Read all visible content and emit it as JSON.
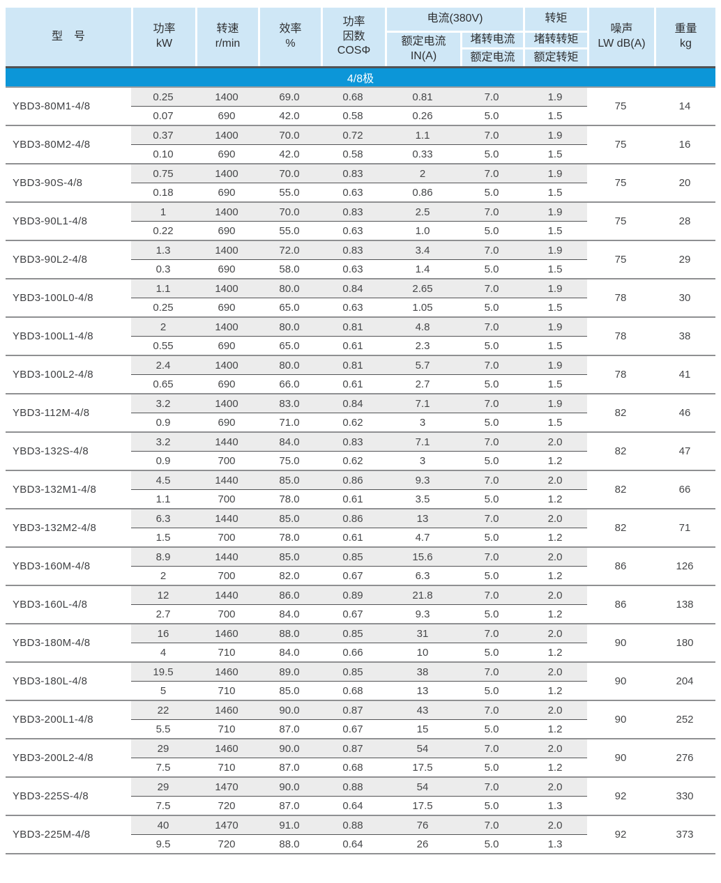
{
  "table": {
    "headers": {
      "model": "型　号",
      "power": "功率\nkW",
      "speed": "转速\nr/min",
      "efficiency": "效率\n%",
      "power_factor": "功率\n因数\nCOSΦ",
      "current_group": "电流(380V)",
      "rated_current": "额定电流\nIN(A)",
      "locked_current_num": "堵转电流",
      "locked_current_den": "额定电流",
      "torque_group": "转矩",
      "locked_torque_num": "堵转转矩",
      "locked_torque_den": "额定转矩",
      "noise": "噪声\nLW dB(A)",
      "weight": "重量\nkg"
    },
    "section_banner": "4/8极",
    "rows": [
      {
        "model": "YBD3-80M1-4/8",
        "high": [
          "0.25",
          "1400",
          "69.0",
          "0.68",
          "0.81",
          "7.0",
          "1.9"
        ],
        "low": [
          "0.07",
          "690",
          "42.0",
          "0.58",
          "0.26",
          "5.0",
          "1.5"
        ],
        "noise": "75",
        "weight": "14"
      },
      {
        "model": "YBD3-80M2-4/8",
        "high": [
          "0.37",
          "1400",
          "70.0",
          "0.72",
          "1.1",
          "7.0",
          "1.9"
        ],
        "low": [
          "0.10",
          "690",
          "42.0",
          "0.58",
          "0.33",
          "5.0",
          "1.5"
        ],
        "noise": "75",
        "weight": "16"
      },
      {
        "model": "YBD3-90S-4/8",
        "high": [
          "0.75",
          "1400",
          "70.0",
          "0.83",
          "2",
          "7.0",
          "1.9"
        ],
        "low": [
          "0.18",
          "690",
          "55.0",
          "0.63",
          "0.86",
          "5.0",
          "1.5"
        ],
        "noise": "75",
        "weight": "20"
      },
      {
        "model": "YBD3-90L1-4/8",
        "high": [
          "1",
          "1400",
          "70.0",
          "0.83",
          "2.5",
          "7.0",
          "1.9"
        ],
        "low": [
          "0.22",
          "690",
          "55.0",
          "0.63",
          "1.0",
          "5.0",
          "1.5"
        ],
        "noise": "75",
        "weight": "28"
      },
      {
        "model": "YBD3-90L2-4/8",
        "high": [
          "1.3",
          "1400",
          "72.0",
          "0.83",
          "3.4",
          "7.0",
          "1.9"
        ],
        "low": [
          "0.3",
          "690",
          "58.0",
          "0.63",
          "1.4",
          "5.0",
          "1.5"
        ],
        "noise": "75",
        "weight": "29"
      },
      {
        "model": "YBD3-100L0-4/8",
        "high": [
          "1.1",
          "1400",
          "80.0",
          "0.84",
          "2.65",
          "7.0",
          "1.9"
        ],
        "low": [
          "0.25",
          "690",
          "65.0",
          "0.63",
          "1.05",
          "5.0",
          "1.5"
        ],
        "noise": "78",
        "weight": "30"
      },
      {
        "model": "YBD3-100L1-4/8",
        "high": [
          "2",
          "1400",
          "80.0",
          "0.81",
          "4.8",
          "7.0",
          "1.9"
        ],
        "low": [
          "0.55",
          "690",
          "65.0",
          "0.61",
          "2.3",
          "5.0",
          "1.5"
        ],
        "noise": "78",
        "weight": "38"
      },
      {
        "model": "YBD3-100L2-4/8",
        "high": [
          "2.4",
          "1400",
          "80.0",
          "0.81",
          "5.7",
          "7.0",
          "1.9"
        ],
        "low": [
          "0.65",
          "690",
          "66.0",
          "0.61",
          "2.7",
          "5.0",
          "1.5"
        ],
        "noise": "78",
        "weight": "41"
      },
      {
        "model": "YBD3-112M-4/8",
        "high": [
          "3.2",
          "1400",
          "83.0",
          "0.84",
          "7.1",
          "7.0",
          "1.9"
        ],
        "low": [
          "0.9",
          "690",
          "71.0",
          "0.62",
          "3",
          "5.0",
          "1.5"
        ],
        "noise": "82",
        "weight": "46"
      },
      {
        "model": "YBD3-132S-4/8",
        "high": [
          "3.2",
          "1440",
          "84.0",
          "0.83",
          "7.1",
          "7.0",
          "2.0"
        ],
        "low": [
          "0.9",
          "700",
          "75.0",
          "0.62",
          "3",
          "5.0",
          "1.2"
        ],
        "noise": "82",
        "weight": "47"
      },
      {
        "model": "YBD3-132M1-4/8",
        "high": [
          "4.5",
          "1440",
          "85.0",
          "0.86",
          "9.3",
          "7.0",
          "2.0"
        ],
        "low": [
          "1.1",
          "700",
          "78.0",
          "0.61",
          "3.5",
          "5.0",
          "1.2"
        ],
        "noise": "82",
        "weight": "66"
      },
      {
        "model": "YBD3-132M2-4/8",
        "high": [
          "6.3",
          "1440",
          "85.0",
          "0.86",
          "13",
          "7.0",
          "2.0"
        ],
        "low": [
          "1.5",
          "700",
          "78.0",
          "0.61",
          "4.7",
          "5.0",
          "1.2"
        ],
        "noise": "82",
        "weight": "71"
      },
      {
        "model": "YBD3-160M-4/8",
        "high": [
          "8.9",
          "1440",
          "85.0",
          "0.85",
          "15.6",
          "7.0",
          "2.0"
        ],
        "low": [
          "2",
          "700",
          "82.0",
          "0.67",
          "6.3",
          "5.0",
          "1.2"
        ],
        "noise": "86",
        "weight": "126"
      },
      {
        "model": "YBD3-160L-4/8",
        "high": [
          "12",
          "1440",
          "86.0",
          "0.89",
          "21.8",
          "7.0",
          "2.0"
        ],
        "low": [
          "2.7",
          "700",
          "84.0",
          "0.67",
          "9.3",
          "5.0",
          "1.2"
        ],
        "noise": "86",
        "weight": "138"
      },
      {
        "model": "YBD3-180M-4/8",
        "high": [
          "16",
          "1460",
          "88.0",
          "0.85",
          "31",
          "7.0",
          "2.0"
        ],
        "low": [
          "4",
          "710",
          "84.0",
          "0.66",
          "10",
          "5.0",
          "1.2"
        ],
        "noise": "90",
        "weight": "180"
      },
      {
        "model": "YBD3-180L-4/8",
        "high": [
          "19.5",
          "1460",
          "89.0",
          "0.85",
          "38",
          "7.0",
          "2.0"
        ],
        "low": [
          "5",
          "710",
          "85.0",
          "0.68",
          "13",
          "5.0",
          "1.2"
        ],
        "noise": "90",
        "weight": "204"
      },
      {
        "model": "YBD3-200L1-4/8",
        "high": [
          "22",
          "1460",
          "90.0",
          "0.87",
          "43",
          "7.0",
          "2.0"
        ],
        "low": [
          "5.5",
          "710",
          "87.0",
          "0.67",
          "15",
          "5.0",
          "1.2"
        ],
        "noise": "90",
        "weight": "252"
      },
      {
        "model": "YBD3-200L2-4/8",
        "high": [
          "29",
          "1460",
          "90.0",
          "0.87",
          "54",
          "7.0",
          "2.0"
        ],
        "low": [
          "7.5",
          "710",
          "87.0",
          "0.68",
          "17.5",
          "5.0",
          "1.2"
        ],
        "noise": "90",
        "weight": "276"
      },
      {
        "model": "YBD3-225S-4/8",
        "high": [
          "29",
          "1470",
          "90.0",
          "0.88",
          "54",
          "7.0",
          "2.0"
        ],
        "low": [
          "7.5",
          "720",
          "87.0",
          "0.64",
          "17.5",
          "5.0",
          "1.3"
        ],
        "noise": "92",
        "weight": "330"
      },
      {
        "model": "YBD3-225M-4/8",
        "high": [
          "40",
          "1470",
          "91.0",
          "0.88",
          "76",
          "7.0",
          "2.0"
        ],
        "low": [
          "9.5",
          "720",
          "88.0",
          "0.64",
          "26",
          "5.0",
          "1.3"
        ],
        "noise": "92",
        "weight": "373"
      }
    ],
    "colors": {
      "header_bg": "#cfe7f6",
      "banner_bg": "#0c96d8",
      "row_band_bg": "#ececec",
      "separator_dark": "#515254",
      "separator_gray": "#8e8f91"
    }
  }
}
